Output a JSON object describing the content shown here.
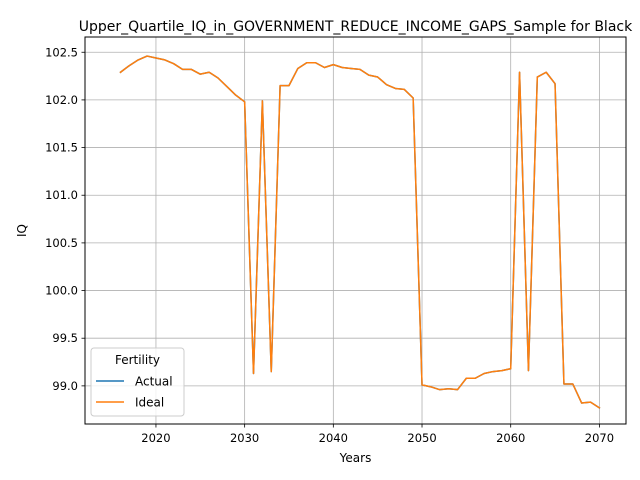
{
  "chart_data": {
    "type": "line",
    "title": "Upper_Quartile_IQ_in_GOVERNMENT_REDUCE_INCOME_GAPS_Sample for Black",
    "xlabel": "Years",
    "ylabel": "IQ",
    "xlim": [
      2012,
      2073
    ],
    "ylim": [
      98.6,
      102.66
    ],
    "xticks": [
      2020,
      2030,
      2040,
      2050,
      2060,
      2070
    ],
    "yticks": [
      99.0,
      99.5,
      100.0,
      100.5,
      101.0,
      101.5,
      102.0,
      102.5
    ],
    "xtick_labels": [
      "2020",
      "2030",
      "2040",
      "2050",
      "2060",
      "2070"
    ],
    "ytick_labels": [
      "99.0",
      "99.5",
      "100.0",
      "100.5",
      "101.0",
      "101.5",
      "102.0",
      "102.5"
    ],
    "grid": true,
    "legend": {
      "title": "Fertility",
      "position": "lower-left"
    },
    "x": [
      2016,
      2017,
      2018,
      2019,
      2020,
      2021,
      2022,
      2023,
      2024,
      2025,
      2026,
      2027,
      2028,
      2029,
      2030,
      2031,
      2032,
      2033,
      2034,
      2035,
      2036,
      2037,
      2038,
      2039,
      2040,
      2041,
      2042,
      2043,
      2044,
      2045,
      2046,
      2047,
      2048,
      2049,
      2050,
      2051,
      2052,
      2053,
      2054,
      2055,
      2056,
      2057,
      2058,
      2059,
      2060,
      2061,
      2062,
      2063,
      2064,
      2065,
      2066,
      2067,
      2068,
      2069,
      2070
    ],
    "series": [
      {
        "name": "Actual",
        "color": "#1f77b4",
        "values": [
          102.29,
          102.36,
          102.42,
          102.46,
          102.44,
          102.42,
          102.38,
          102.32,
          102.32,
          102.27,
          102.29,
          102.23,
          102.14,
          102.05,
          101.98,
          99.13,
          101.99,
          99.15,
          102.15,
          102.15,
          102.33,
          102.39,
          102.39,
          102.34,
          102.37,
          102.34,
          102.33,
          102.32,
          102.26,
          102.24,
          102.16,
          102.12,
          102.11,
          102.02,
          99.01,
          98.99,
          98.96,
          98.97,
          98.96,
          99.08,
          99.08,
          99.13,
          99.15,
          99.16,
          99.18,
          102.29,
          99.16,
          102.24,
          102.29,
          102.17,
          99.02,
          99.02,
          98.82,
          98.83,
          98.77
        ]
      },
      {
        "name": "Ideal",
        "color": "#ff7f0e",
        "values": [
          102.29,
          102.36,
          102.42,
          102.46,
          102.44,
          102.42,
          102.38,
          102.32,
          102.32,
          102.27,
          102.29,
          102.23,
          102.14,
          102.05,
          101.98,
          99.13,
          101.99,
          99.15,
          102.15,
          102.15,
          102.33,
          102.39,
          102.39,
          102.34,
          102.37,
          102.34,
          102.33,
          102.32,
          102.26,
          102.24,
          102.16,
          102.12,
          102.11,
          102.02,
          99.01,
          98.99,
          98.96,
          98.97,
          98.96,
          99.08,
          99.08,
          99.13,
          99.15,
          99.16,
          99.18,
          102.29,
          99.16,
          102.24,
          102.29,
          102.17,
          99.02,
          99.02,
          98.82,
          98.83,
          98.77
        ]
      }
    ]
  }
}
